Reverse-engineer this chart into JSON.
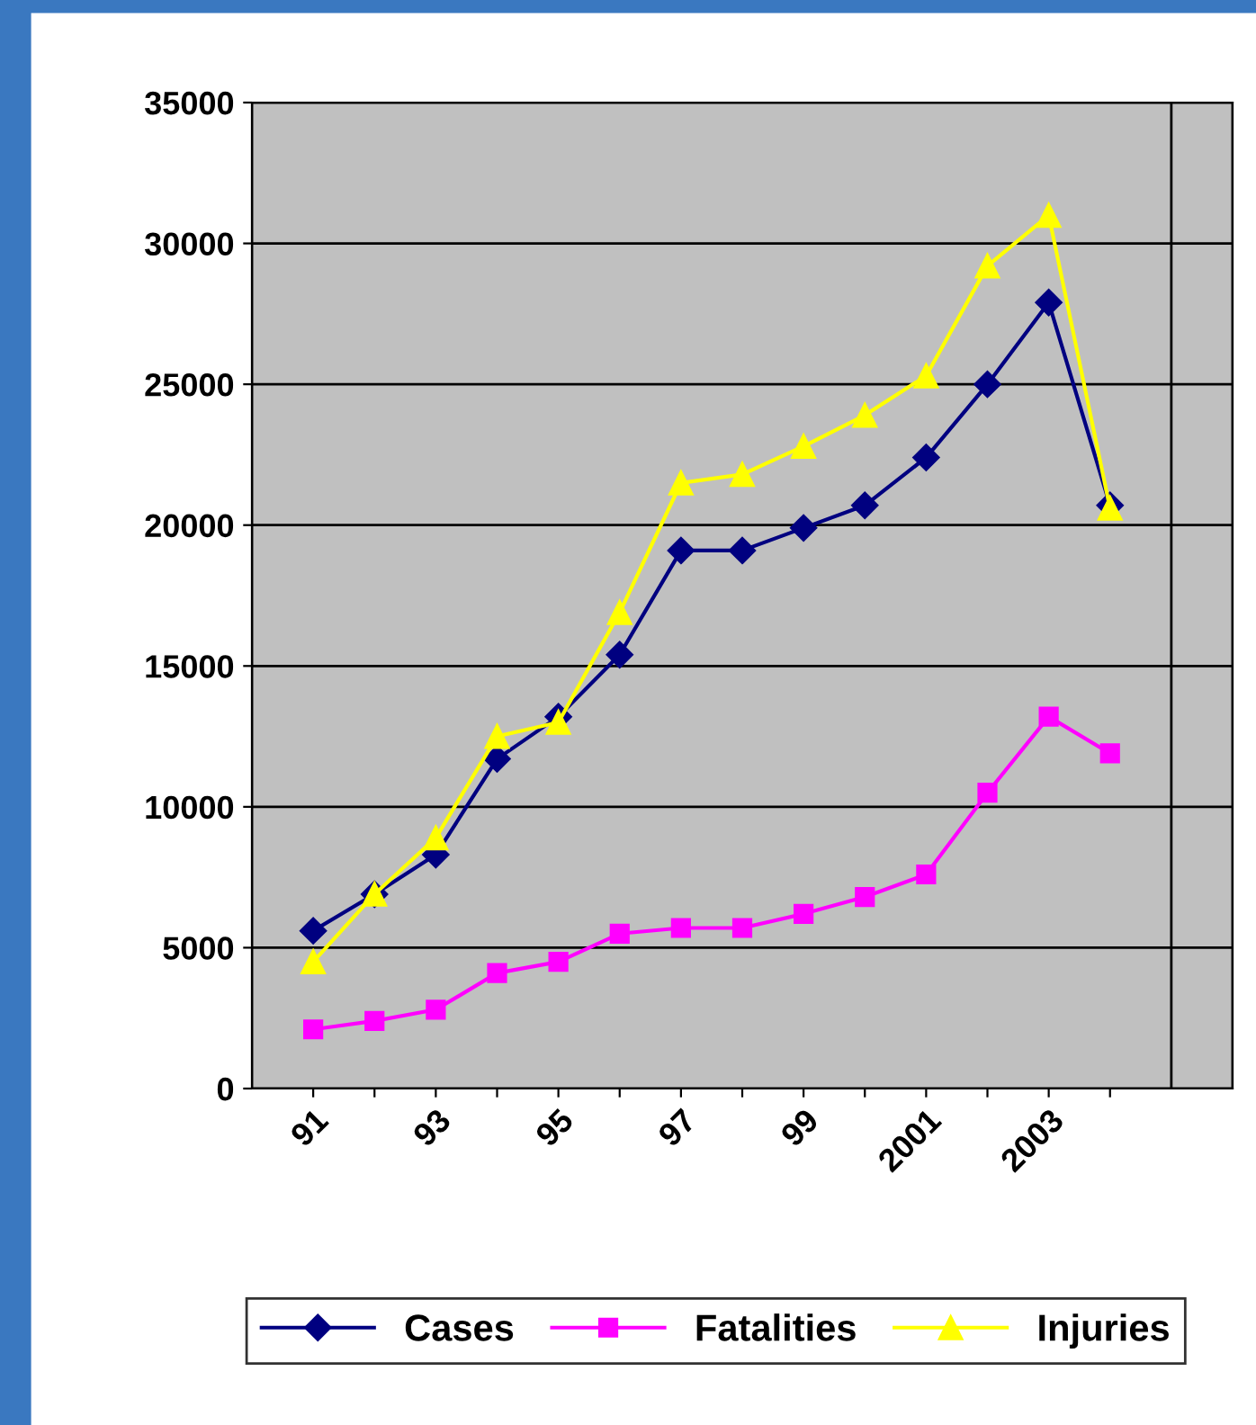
{
  "chart_data": {
    "type": "line",
    "categories": [
      "91",
      null,
      "93",
      null,
      "95",
      null,
      "97",
      null,
      "99",
      null,
      "2001",
      null,
      "2003",
      null
    ],
    "series": [
      {
        "name": "Cases",
        "color": "#000080",
        "marker": "diamond",
        "values": [
          5600,
          6900,
          8300,
          11700,
          13200,
          15400,
          19100,
          19100,
          19900,
          20700,
          22400,
          25000,
          27900,
          20700
        ]
      },
      {
        "name": "Fatalities",
        "color": "#ff00ff",
        "marker": "square",
        "values": [
          2100,
          2400,
          2800,
          4100,
          4500,
          5500,
          5700,
          5700,
          6200,
          6800,
          7600,
          10500,
          13200,
          11900
        ]
      },
      {
        "name": "Injuries",
        "color": "#ffff00",
        "marker": "triangle",
        "values": [
          4500,
          6900,
          8900,
          12500,
          13000,
          16900,
          21500,
          21800,
          22800,
          23900,
          25300,
          29200,
          31000,
          20600
        ]
      }
    ],
    "ylim": [
      0,
      35000
    ],
    "yticks": [
      0,
      5000,
      10000,
      15000,
      20000,
      25000,
      30000,
      35000
    ],
    "grid": true,
    "legend": "bottom",
    "line_style": "solid"
  }
}
